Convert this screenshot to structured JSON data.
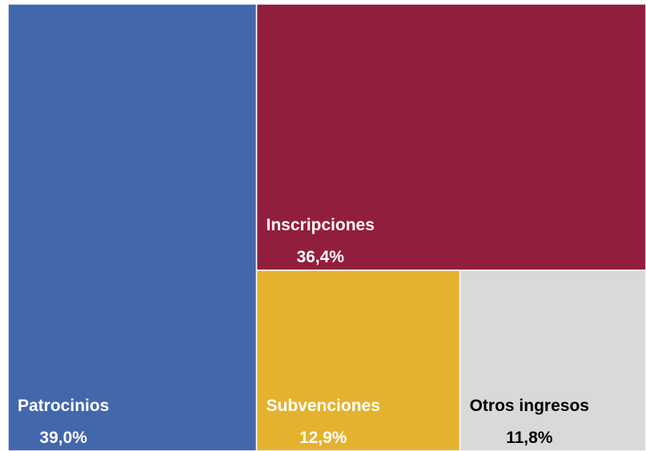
{
  "chart_data": {
    "type": "treemap",
    "categories": [
      "Patrocinios",
      "Inscripciones",
      "Subvenciones",
      "Otros ingresos"
    ],
    "values": [
      39.0,
      36.4,
      12.9,
      11.8
    ],
    "value_labels": [
      "39,0%",
      "36,4%",
      "12,9%",
      "11,8%"
    ],
    "colors": [
      "#4367ac",
      "#921e3d",
      "#e5b22e",
      "#d9d9d9"
    ],
    "label_colors": [
      "#ffffff",
      "#ffffff",
      "#ffffff",
      "#000000"
    ]
  }
}
